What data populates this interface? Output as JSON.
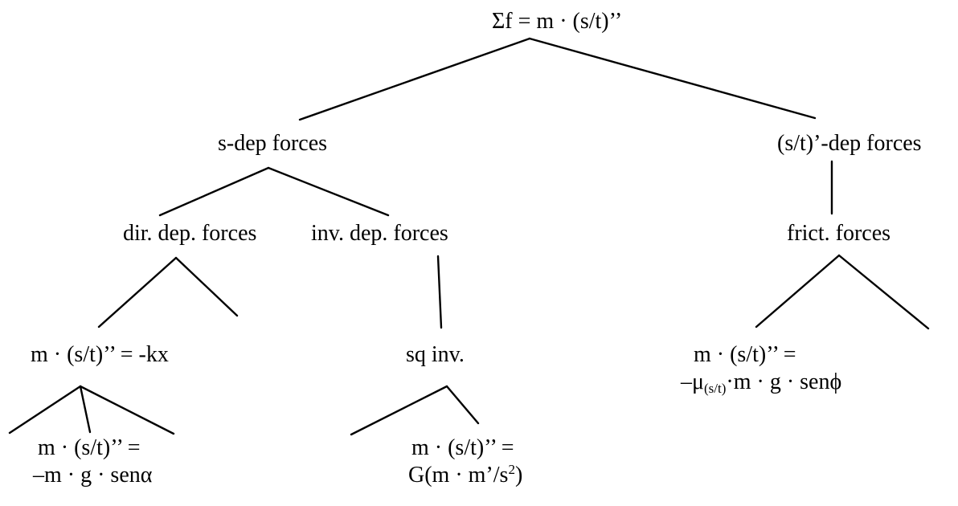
{
  "tree": {
    "root": "Σf = m · (s/t)’’",
    "s_dep": "s-dep forces",
    "st_dep": "(s/t)’-dep forces",
    "dir_dep": "dir. dep. forces",
    "inv_dep": "inv. dep. forces",
    "frict": "frict. forces",
    "spring_eq": "m · (s/t)’’ = -kx",
    "sq_inv": "sq inv.",
    "friction_eq": {
      "line1": "m · (s/t)’’ =",
      "line2_pre": "–μ",
      "line2_sub": "(s/t)",
      "line2_post": "·m · g · senϕ"
    },
    "pendulum_eq": {
      "line1": "m · (s/t)’’ =",
      "line2": "–m · g · senα"
    },
    "gravity_eq": {
      "line1": "m · (s/t)’’ =",
      "line2_pre": "G(m · m’/s",
      "line2_sup": "2",
      "line2_post": ")"
    }
  }
}
